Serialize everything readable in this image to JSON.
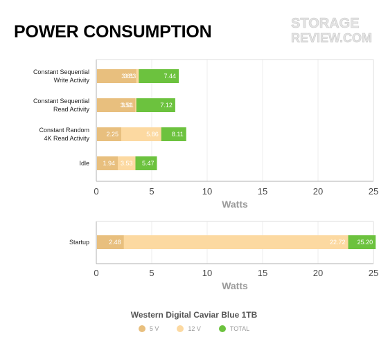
{
  "header": {
    "title": "POWER CONSUMPTION"
  },
  "logo": {
    "line1": "STORAGE",
    "line2": "REVIEW.COM"
  },
  "colors": {
    "v5": "#e8bf7e",
    "v12": "#fcd9a1",
    "total": "#6cc23e",
    "axis": "#b0b0b0",
    "grid": "#eeeeee"
  },
  "chart_data": [
    {
      "type": "bar",
      "orientation": "horizontal",
      "stacked": false,
      "categories": [
        "Constant Sequential\nWrite Activity",
        "Constant Sequential\nRead Activity",
        "Constant Random\n4K Read Activity",
        "Idle"
      ],
      "series": [
        {
          "name": "5 V",
          "values": [
            3.61,
            3.51,
            2.25,
            1.94
          ]
        },
        {
          "name": "12 V",
          "values": [
            3.83,
            3.61,
            5.86,
            3.53
          ]
        },
        {
          "name": "TOTAL",
          "values": [
            7.44,
            7.12,
            8.11,
            5.47
          ]
        }
      ],
      "xlabel": "Watts",
      "xlim": [
        0,
        25
      ],
      "xticks": [
        0,
        5,
        10,
        15,
        20,
        25
      ],
      "grid": true
    },
    {
      "type": "bar",
      "orientation": "horizontal",
      "stacked": false,
      "categories": [
        "Startup"
      ],
      "series": [
        {
          "name": "5 V",
          "values": [
            2.48
          ]
        },
        {
          "name": "12 V",
          "values": [
            22.72
          ]
        },
        {
          "name": "TOTAL",
          "values": [
            25.2
          ]
        }
      ],
      "xlabel": "Watts",
      "xlim": [
        0,
        25
      ],
      "xticks": [
        0,
        5,
        10,
        15,
        20,
        25
      ],
      "grid": true
    }
  ],
  "legend": {
    "title": "Western Digital Caviar Blue 1TB",
    "items": [
      "5 V",
      "12 V",
      "TOTAL"
    ]
  }
}
